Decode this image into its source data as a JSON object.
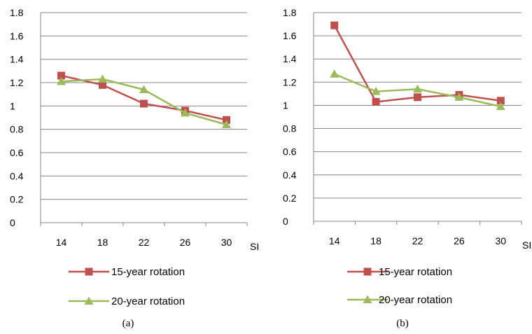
{
  "chart_data": [
    {
      "type": "line",
      "caption": "(a)",
      "xlabel": "SI",
      "categories": [
        "14",
        "18",
        "22",
        "26",
        "30"
      ],
      "yticks": [
        "0",
        "0.2",
        "0.4",
        "0.6",
        "0.8",
        "1",
        "1.2",
        "1.4",
        "1.6",
        "1.8"
      ],
      "ylim": [
        0,
        1.8
      ],
      "grid": true,
      "legend_position": "bottom",
      "series": [
        {
          "name": "15-year rotation",
          "color": "#c0504d",
          "marker": "square",
          "values": [
            1.26,
            1.18,
            1.02,
            0.96,
            0.88
          ]
        },
        {
          "name": "20-year rotation",
          "color": "#9bbb59",
          "marker": "triangle",
          "values": [
            1.21,
            1.23,
            1.14,
            0.94,
            0.84
          ]
        }
      ]
    },
    {
      "type": "line",
      "caption": "(b)",
      "xlabel": "SI",
      "categories": [
        "14",
        "18",
        "22",
        "26",
        "30"
      ],
      "yticks": [
        "0",
        "0.2",
        "0.4",
        "0.6",
        "0.8",
        "1",
        "1.2",
        "1.4",
        "1.6",
        "1.8"
      ],
      "ylim": [
        0,
        1.8
      ],
      "grid": true,
      "legend_position": "bottom",
      "series": [
        {
          "name": "15-year rotation",
          "color": "#c0504d",
          "marker": "square",
          "values": [
            1.69,
            1.03,
            1.07,
            1.09,
            1.04
          ]
        },
        {
          "name": "20-year rotation",
          "color": "#9bbb59",
          "marker": "triangle",
          "values": [
            1.27,
            1.12,
            1.14,
            1.07,
            0.99
          ]
        }
      ]
    }
  ]
}
